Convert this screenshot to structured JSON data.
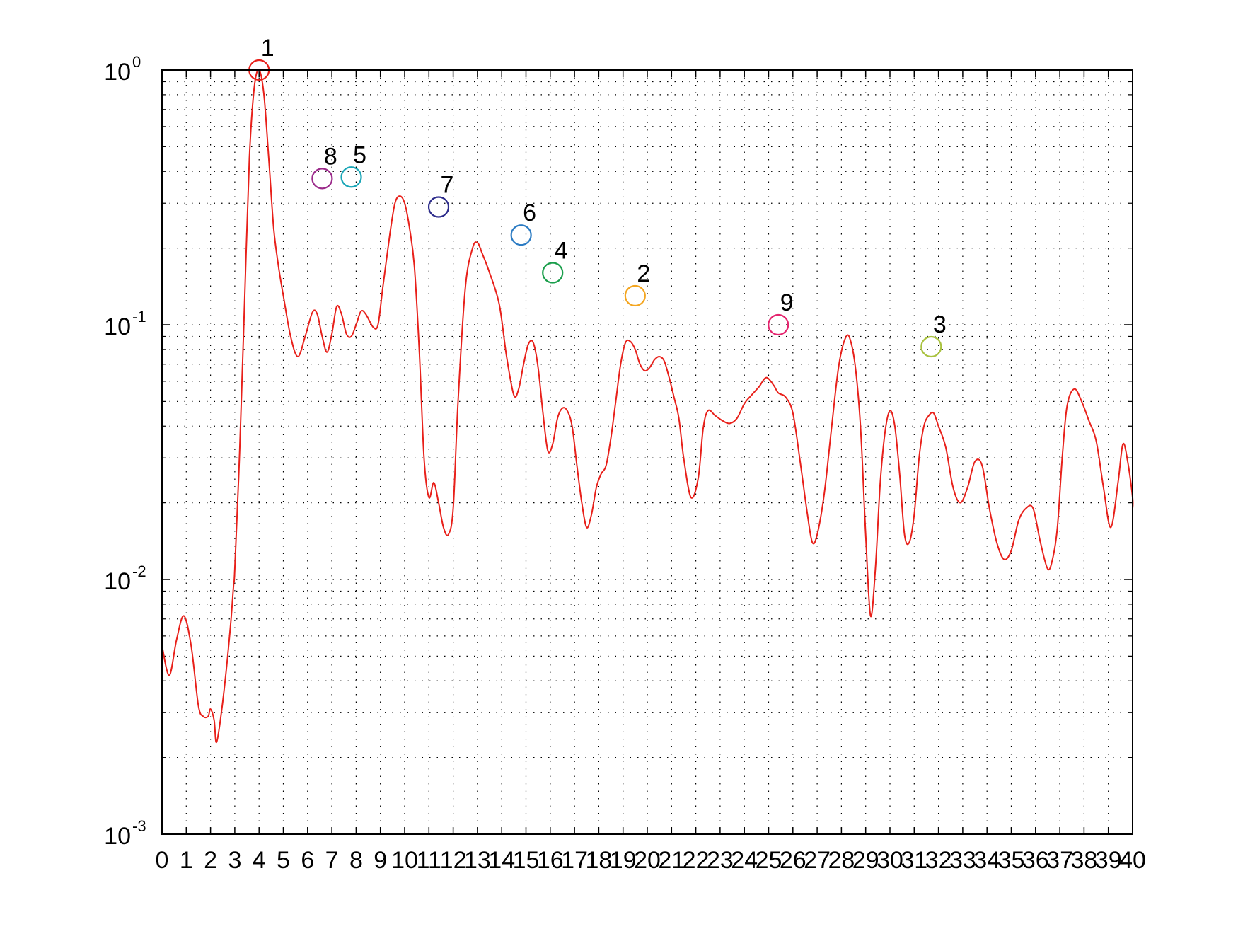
{
  "chart_data": {
    "type": "line",
    "title": "",
    "xlabel": "",
    "ylabel": "",
    "x_scale": "linear",
    "y_scale": "log",
    "xlim": [
      0,
      40
    ],
    "ylim": [
      0.001,
      1
    ],
    "grid": true,
    "x_tick_labels": [
      "0",
      "1",
      "2",
      "3",
      "4",
      "5",
      "6",
      "7",
      "8",
      "9",
      "10",
      "11",
      "12",
      "13",
      "14",
      "15",
      "16",
      "17",
      "18",
      "19",
      "20",
      "21",
      "22",
      "23",
      "24",
      "25",
      "26",
      "27",
      "28",
      "29",
      "30",
      "31",
      "32",
      "33",
      "34",
      "35",
      "36",
      "37",
      "38",
      "39",
      "40"
    ],
    "y_ticks": [
      {
        "value": 1,
        "mantissa": "10",
        "exponent": "0"
      },
      {
        "value": 0.1,
        "mantissa": "10",
        "exponent": "-1"
      },
      {
        "value": 0.01,
        "mantissa": "10",
        "exponent": "-2"
      },
      {
        "value": 0.001,
        "mantissa": "10",
        "exponent": "-3"
      }
    ],
    "series": [
      {
        "color": "#e8201a",
        "points": [
          [
            0.0,
            0.0055
          ],
          [
            0.3,
            0.0042
          ],
          [
            0.6,
            0.0058
          ],
          [
            0.9,
            0.0072
          ],
          [
            1.2,
            0.0055
          ],
          [
            1.5,
            0.0032
          ],
          [
            1.7,
            0.0029
          ],
          [
            1.9,
            0.0029
          ],
          [
            2.0,
            0.0031
          ],
          [
            2.15,
            0.0028
          ],
          [
            2.25,
            0.0023
          ],
          [
            2.5,
            0.0033
          ],
          [
            2.8,
            0.0062
          ],
          [
            2.95,
            0.0095
          ],
          [
            3.0,
            0.011
          ],
          [
            3.2,
            0.032
          ],
          [
            3.4,
            0.12
          ],
          [
            3.6,
            0.45
          ],
          [
            3.8,
            0.85
          ],
          [
            4.0,
            1.0
          ],
          [
            4.2,
            0.8
          ],
          [
            4.4,
            0.45
          ],
          [
            4.6,
            0.24
          ],
          [
            4.8,
            0.17
          ],
          [
            5.0,
            0.13
          ],
          [
            5.3,
            0.09
          ],
          [
            5.6,
            0.075
          ],
          [
            5.9,
            0.09
          ],
          [
            6.2,
            0.112
          ],
          [
            6.4,
            0.11
          ],
          [
            6.6,
            0.09
          ],
          [
            6.8,
            0.078
          ],
          [
            7.0,
            0.092
          ],
          [
            7.2,
            0.118
          ],
          [
            7.4,
            0.11
          ],
          [
            7.6,
            0.092
          ],
          [
            7.8,
            0.09
          ],
          [
            8.0,
            0.1
          ],
          [
            8.2,
            0.113
          ],
          [
            8.4,
            0.11
          ],
          [
            8.7,
            0.098
          ],
          [
            8.9,
            0.1
          ],
          [
            9.1,
            0.14
          ],
          [
            9.4,
            0.23
          ],
          [
            9.6,
            0.3
          ],
          [
            9.8,
            0.32
          ],
          [
            10.0,
            0.3
          ],
          [
            10.2,
            0.24
          ],
          [
            10.4,
            0.17
          ],
          [
            10.6,
            0.08
          ],
          [
            10.8,
            0.03
          ],
          [
            11.0,
            0.021
          ],
          [
            11.2,
            0.024
          ],
          [
            11.4,
            0.02
          ],
          [
            11.6,
            0.016
          ],
          [
            11.8,
            0.015
          ],
          [
            12.0,
            0.019
          ],
          [
            12.2,
            0.05
          ],
          [
            12.5,
            0.14
          ],
          [
            12.8,
            0.2
          ],
          [
            13.0,
            0.21
          ],
          [
            13.2,
            0.19
          ],
          [
            13.5,
            0.16
          ],
          [
            13.9,
            0.12
          ],
          [
            14.2,
            0.075
          ],
          [
            14.5,
            0.053
          ],
          [
            14.7,
            0.056
          ],
          [
            14.9,
            0.07
          ],
          [
            15.1,
            0.084
          ],
          [
            15.3,
            0.085
          ],
          [
            15.5,
            0.068
          ],
          [
            15.7,
            0.045
          ],
          [
            15.9,
            0.032
          ],
          [
            16.1,
            0.034
          ],
          [
            16.3,
            0.043
          ],
          [
            16.5,
            0.047
          ],
          [
            16.7,
            0.046
          ],
          [
            16.9,
            0.04
          ],
          [
            17.1,
            0.028
          ],
          [
            17.3,
            0.02
          ],
          [
            17.5,
            0.016
          ],
          [
            17.7,
            0.018
          ],
          [
            17.9,
            0.023
          ],
          [
            18.1,
            0.026
          ],
          [
            18.3,
            0.028
          ],
          [
            18.5,
            0.036
          ],
          [
            18.7,
            0.05
          ],
          [
            18.9,
            0.07
          ],
          [
            19.1,
            0.085
          ],
          [
            19.3,
            0.086
          ],
          [
            19.5,
            0.08
          ],
          [
            19.7,
            0.07
          ],
          [
            19.9,
            0.066
          ],
          [
            20.1,
            0.068
          ],
          [
            20.3,
            0.073
          ],
          [
            20.5,
            0.075
          ],
          [
            20.7,
            0.072
          ],
          [
            20.9,
            0.062
          ],
          [
            21.1,
            0.052
          ],
          [
            21.3,
            0.043
          ],
          [
            21.5,
            0.03
          ],
          [
            21.8,
            0.021
          ],
          [
            22.1,
            0.025
          ],
          [
            22.3,
            0.039
          ],
          [
            22.5,
            0.046
          ],
          [
            22.8,
            0.044
          ],
          [
            23.1,
            0.042
          ],
          [
            23.4,
            0.041
          ],
          [
            23.7,
            0.043
          ],
          [
            24.0,
            0.049
          ],
          [
            24.3,
            0.053
          ],
          [
            24.6,
            0.057
          ],
          [
            24.9,
            0.062
          ],
          [
            25.2,
            0.058
          ],
          [
            25.4,
            0.054
          ],
          [
            25.7,
            0.052
          ],
          [
            26.0,
            0.045
          ],
          [
            26.3,
            0.029
          ],
          [
            26.6,
            0.018
          ],
          [
            26.8,
            0.014
          ],
          [
            27.0,
            0.015
          ],
          [
            27.3,
            0.022
          ],
          [
            27.6,
            0.04
          ],
          [
            27.9,
            0.07
          ],
          [
            28.2,
            0.09
          ],
          [
            28.4,
            0.085
          ],
          [
            28.6,
            0.065
          ],
          [
            28.8,
            0.038
          ],
          [
            29.0,
            0.015
          ],
          [
            29.2,
            0.0072
          ],
          [
            29.4,
            0.011
          ],
          [
            29.6,
            0.024
          ],
          [
            29.8,
            0.038
          ],
          [
            30.0,
            0.046
          ],
          [
            30.2,
            0.04
          ],
          [
            30.4,
            0.026
          ],
          [
            30.6,
            0.015
          ],
          [
            30.8,
            0.014
          ],
          [
            31.0,
            0.018
          ],
          [
            31.2,
            0.03
          ],
          [
            31.4,
            0.04
          ],
          [
            31.6,
            0.044
          ],
          [
            31.8,
            0.045
          ],
          [
            32.0,
            0.04
          ],
          [
            32.3,
            0.033
          ],
          [
            32.6,
            0.023
          ],
          [
            32.9,
            0.02
          ],
          [
            33.2,
            0.023
          ],
          [
            33.5,
            0.029
          ],
          [
            33.8,
            0.028
          ],
          [
            34.1,
            0.019
          ],
          [
            34.4,
            0.014
          ],
          [
            34.7,
            0.012
          ],
          [
            35.0,
            0.013
          ],
          [
            35.3,
            0.017
          ],
          [
            35.6,
            0.019
          ],
          [
            35.9,
            0.019
          ],
          [
            36.2,
            0.014
          ],
          [
            36.5,
            0.011
          ],
          [
            36.7,
            0.012
          ],
          [
            36.9,
            0.016
          ],
          [
            37.1,
            0.03
          ],
          [
            37.3,
            0.048
          ],
          [
            37.6,
            0.056
          ],
          [
            37.9,
            0.05
          ],
          [
            38.2,
            0.042
          ],
          [
            38.5,
            0.035
          ],
          [
            38.8,
            0.023
          ],
          [
            39.1,
            0.016
          ],
          [
            39.4,
            0.024
          ],
          [
            39.6,
            0.034
          ],
          [
            39.8,
            0.029
          ],
          [
            40.1,
            0.021
          ],
          [
            40.4,
            0.019
          ],
          [
            40.6,
            0.0195
          ],
          [
            40.7,
            0.02
          ]
        ]
      }
    ],
    "annotations": [
      {
        "label": "1",
        "x": 4.0,
        "y": 1.0,
        "color": "#e8201a"
      },
      {
        "label": "2",
        "x": 19.5,
        "y": 0.13,
        "color": "#f4a621"
      },
      {
        "label": "3",
        "x": 31.7,
        "y": 0.082,
        "color": "#a9c23f"
      },
      {
        "label": "4",
        "x": 16.1,
        "y": 0.16,
        "color": "#1a9e4b"
      },
      {
        "label": "5",
        "x": 7.8,
        "y": 0.38,
        "color": "#1aa6b7"
      },
      {
        "label": "6",
        "x": 14.8,
        "y": 0.225,
        "color": "#2b7bc3"
      },
      {
        "label": "7",
        "x": 11.4,
        "y": 0.29,
        "color": "#2b2a8a"
      },
      {
        "label": "8",
        "x": 6.6,
        "y": 0.375,
        "color": "#9b2a8a"
      },
      {
        "label": "9",
        "x": 25.4,
        "y": 0.1,
        "color": "#e4246e"
      }
    ]
  }
}
